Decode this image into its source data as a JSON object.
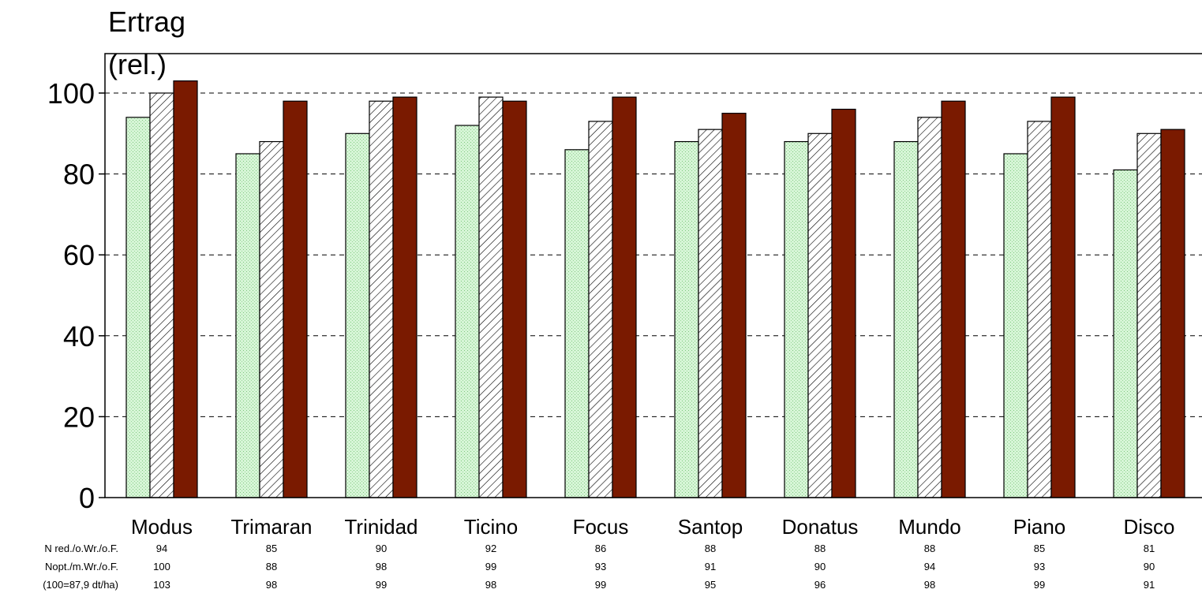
{
  "chart_data": {
    "type": "bar",
    "ylabel_line1": "Ertrag",
    "ylabel_line2": "(rel.)",
    "ylim": [
      0,
      100
    ],
    "yticks": [
      0,
      20,
      40,
      60,
      80,
      100
    ],
    "grid": true,
    "categories": [
      "Modus",
      "Trimaran",
      "Trinidad",
      "Ticino",
      "Focus",
      "Santop",
      "Donatus",
      "Mundo",
      "Piano",
      "Disco"
    ],
    "series": [
      {
        "name": "N red./o.Wr./o.F.",
        "values": [
          94,
          85,
          90,
          92,
          86,
          88,
          88,
          88,
          85,
          81
        ],
        "color": "#c8f0c8",
        "pattern": "dotted-green"
      },
      {
        "name": "Nopt./m.Wr./o.F.",
        "values": [
          100,
          88,
          98,
          99,
          93,
          91,
          90,
          94,
          93,
          90
        ],
        "color": "#ffffff",
        "pattern": "diagonal-hatch"
      },
      {
        "name": "(100=87,9 dt/ha)",
        "values": [
          103,
          98,
          99,
          98,
          99,
          95,
          96,
          98,
          99,
          91
        ],
        "color": "#7a1a00",
        "pattern": "solid"
      }
    ]
  }
}
